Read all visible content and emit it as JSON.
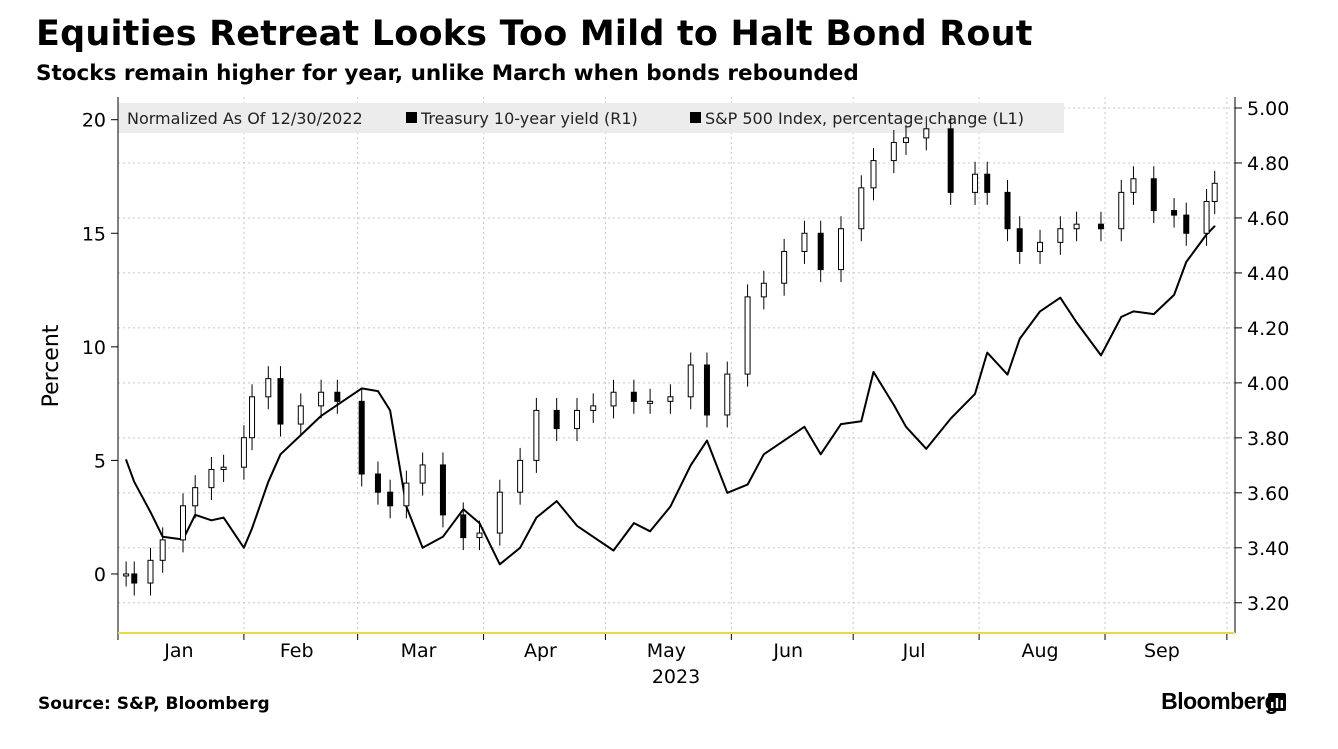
{
  "title": "Equities Retreat Looks Too Mild to Halt Bond Rout",
  "subtitle": "Stocks remain higher for year, unlike March when bonds rebounded",
  "source": "Source: S&P, Bloomberg",
  "brand": "Bloomberg",
  "chart_data": {
    "type": "line",
    "ylabel_left": "Percent",
    "xlabel": "2023",
    "legend": {
      "header": "Normalized As Of 12/30/2022",
      "entries": [
        "Treasury 10-year yield (R1)",
        "S&P 500 Index, percentage change (L1)"
      ]
    },
    "x_tick_labels": [
      "Jan",
      "Feb",
      "Mar",
      "Apr",
      "May",
      "Jun",
      "Jul",
      "Aug",
      "Sep"
    ],
    "y_left": {
      "ticks": [
        "0",
        "5",
        "10",
        "15",
        "20"
      ],
      "lim": [
        -2.6,
        21
      ]
    },
    "y_right": {
      "ticks": [
        "3.20",
        "3.40",
        "3.60",
        "3.80",
        "4.00",
        "4.20",
        "4.40",
        "4.60",
        "4.80",
        "5.00"
      ],
      "lim": [
        3.09,
        5.04
      ]
    },
    "grid": true,
    "legend_position": "top-left",
    "series": [
      {
        "name": "Treasury 10-year yield (R1)",
        "axis": "right",
        "style": "line",
        "x": [
          "2023-01-03",
          "2023-01-05",
          "2023-01-09",
          "2023-01-12",
          "2023-01-17",
          "2023-01-20",
          "2023-01-24",
          "2023-01-27",
          "2023-02-01",
          "2023-02-03",
          "2023-02-07",
          "2023-02-10",
          "2023-02-15",
          "2023-02-20",
          "2023-02-24",
          "2023-03-02",
          "2023-03-06",
          "2023-03-09",
          "2023-03-13",
          "2023-03-17",
          "2023-03-22",
          "2023-03-27",
          "2023-03-31",
          "2023-04-05",
          "2023-04-10",
          "2023-04-14",
          "2023-04-19",
          "2023-04-24",
          "2023-04-28",
          "2023-05-03",
          "2023-05-08",
          "2023-05-12",
          "2023-05-17",
          "2023-05-22",
          "2023-05-26",
          "2023-05-31",
          "2023-06-05",
          "2023-06-09",
          "2023-06-14",
          "2023-06-19",
          "2023-06-23",
          "2023-06-28",
          "2023-07-03",
          "2023-07-06",
          "2023-07-11",
          "2023-07-14",
          "2023-07-19",
          "2023-07-25",
          "2023-07-31",
          "2023-08-03",
          "2023-08-08",
          "2023-08-11",
          "2023-08-16",
          "2023-08-21",
          "2023-08-25",
          "2023-08-31",
          "2023-09-05",
          "2023-09-08",
          "2023-09-13",
          "2023-09-18",
          "2023-09-21",
          "2023-09-26",
          "2023-09-28"
        ],
        "values": [
          3.72,
          3.64,
          3.53,
          3.44,
          3.43,
          3.52,
          3.5,
          3.51,
          3.4,
          3.47,
          3.64,
          3.74,
          3.81,
          3.88,
          3.92,
          3.98,
          3.97,
          3.9,
          3.55,
          3.4,
          3.44,
          3.54,
          3.49,
          3.34,
          3.4,
          3.51,
          3.57,
          3.48,
          3.44,
          3.39,
          3.49,
          3.46,
          3.55,
          3.7,
          3.79,
          3.6,
          3.63,
          3.74,
          3.79,
          3.84,
          3.74,
          3.85,
          3.86,
          4.04,
          3.92,
          3.84,
          3.76,
          3.87,
          3.96,
          4.11,
          4.03,
          4.16,
          4.26,
          4.31,
          4.22,
          4.1,
          4.24,
          4.26,
          4.25,
          4.32,
          4.44,
          4.54,
          4.57
        ]
      },
      {
        "name": "S&P 500 Index, percentage change (L1)",
        "axis": "left",
        "style": "candlestick",
        "x": [
          "2023-01-03",
          "2023-01-05",
          "2023-01-09",
          "2023-01-12",
          "2023-01-17",
          "2023-01-20",
          "2023-01-24",
          "2023-01-27",
          "2023-02-01",
          "2023-02-03",
          "2023-02-07",
          "2023-02-10",
          "2023-02-15",
          "2023-02-20",
          "2023-02-24",
          "2023-03-02",
          "2023-03-06",
          "2023-03-09",
          "2023-03-13",
          "2023-03-17",
          "2023-03-22",
          "2023-03-27",
          "2023-03-31",
          "2023-04-05",
          "2023-04-10",
          "2023-04-14",
          "2023-04-19",
          "2023-04-24",
          "2023-04-28",
          "2023-05-03",
          "2023-05-08",
          "2023-05-12",
          "2023-05-17",
          "2023-05-22",
          "2023-05-26",
          "2023-05-31",
          "2023-06-05",
          "2023-06-09",
          "2023-06-14",
          "2023-06-19",
          "2023-06-23",
          "2023-06-28",
          "2023-07-03",
          "2023-07-06",
          "2023-07-11",
          "2023-07-14",
          "2023-07-19",
          "2023-07-25",
          "2023-07-31",
          "2023-08-03",
          "2023-08-08",
          "2023-08-11",
          "2023-08-16",
          "2023-08-21",
          "2023-08-25",
          "2023-08-31",
          "2023-09-05",
          "2023-09-08",
          "2023-09-13",
          "2023-09-18",
          "2023-09-21",
          "2023-09-26",
          "2023-09-28"
        ],
        "values": [
          0.0,
          -0.4,
          0.6,
          1.5,
          3.0,
          3.8,
          4.6,
          4.7,
          6.0,
          7.8,
          8.6,
          6.6,
          7.4,
          8.0,
          7.6,
          4.4,
          3.6,
          3.0,
          4.0,
          4.8,
          2.6,
          1.6,
          1.8,
          3.6,
          5.0,
          7.2,
          6.4,
          7.2,
          7.4,
          8.0,
          7.6,
          7.6,
          7.8,
          9.2,
          7.0,
          8.8,
          12.2,
          12.8,
          14.2,
          15.0,
          13.4,
          15.2,
          17.0,
          18.2,
          19.0,
          19.2,
          19.6,
          16.8,
          17.6,
          16.8,
          15.2,
          14.2,
          14.6,
          15.2,
          15.4,
          15.2,
          16.8,
          17.4,
          16.0,
          15.8,
          15.0,
          16.4,
          17.2
        ]
      }
    ]
  }
}
